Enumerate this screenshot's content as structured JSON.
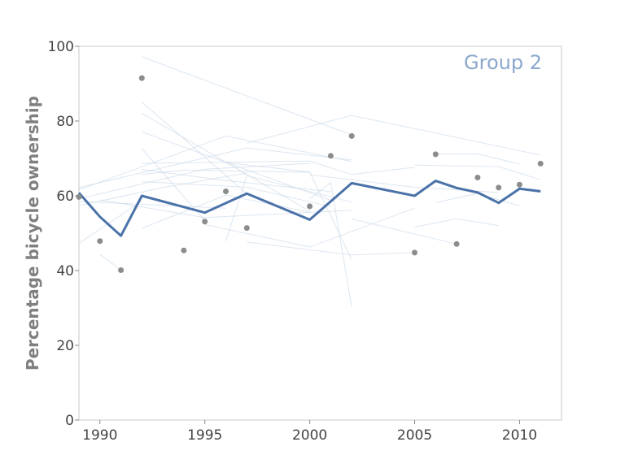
{
  "chart_data": {
    "type": "line",
    "ylabel": "Percentage bicycle ownership",
    "xlabel": "",
    "annotation": "Group 2",
    "xlim": [
      1989,
      2012
    ],
    "ylim": [
      0,
      100
    ],
    "xticks": [
      1990,
      1995,
      2000,
      2005,
      2010
    ],
    "yticks": [
      0,
      20,
      40,
      60,
      80,
      100
    ],
    "grid": false,
    "colors": {
      "mean_line": "#4a72a8",
      "points": "#8c8c8c",
      "background_lines": "#c5d5e6",
      "annotation": "#8aa8cc",
      "axis_frame": "#c8c8c8",
      "ylabel": "#808080",
      "ticks": "#444444"
    },
    "series": [
      {
        "role": "mean",
        "x": [
          1989,
          1990,
          1991,
          1992,
          1995,
          1997,
          2000,
          2002,
          2005,
          2006,
          2007,
          2008,
          2009,
          2010,
          2011
        ],
        "values": [
          60.8,
          54.4,
          49.3,
          60,
          55.5,
          60.6,
          53.6,
          63.4,
          60,
          64,
          62.1,
          60.9,
          58.1,
          61.9,
          61.2
        ]
      },
      {
        "role": "points",
        "x": [
          1989,
          1990,
          1991,
          1992,
          1994,
          1995,
          1996,
          1997,
          2000,
          2001,
          2002,
          2005,
          2006,
          2007,
          2008,
          2009,
          2010,
          2011
        ],
        "values": [
          59.7,
          47.9,
          40.1,
          91.5,
          45.4,
          53.1,
          61.2,
          51.4,
          57.2,
          70.7,
          76,
          44.8,
          71.1,
          47.1,
          64.9,
          62.2,
          63,
          68.6
        ]
      }
    ],
    "background_series": [
      {
        "x": [
          1992,
          2002
        ],
        "values": [
          97.2,
          76.3
        ]
      },
      {
        "x": [
          1992,
          1997
        ],
        "values": [
          85.1,
          60.5
        ]
      },
      {
        "x": [
          1992,
          2000
        ],
        "values": [
          82.1,
          55.9
        ]
      },
      {
        "x": [
          1992,
          2001
        ],
        "values": [
          77.1,
          58.8
        ]
      },
      {
        "x": [
          1989,
          1997,
          2002
        ],
        "values": [
          62.2,
          72.8,
          69.6
        ]
      },
      {
        "x": [
          1989,
          1996,
          2002
        ],
        "values": [
          61.6,
          76,
          69.2
        ]
      },
      {
        "x": [
          1997,
          2002,
          2011
        ],
        "values": [
          74.1,
          81.5,
          70.9
        ]
      },
      {
        "x": [
          2006,
          2008,
          2010
        ],
        "values": [
          71.1,
          71.2,
          68.5
        ]
      },
      {
        "x": [
          1992,
          1994,
          2000
        ],
        "values": [
          65.7,
          66.9,
          66.3
        ]
      },
      {
        "x": [
          1992,
          1996,
          2001
        ],
        "values": [
          67,
          64.1,
          61.1
        ]
      },
      {
        "x": [
          1992,
          2000,
          2002,
          2005
        ],
        "values": [
          68.7,
          69.3,
          65.7,
          67.6
        ]
      },
      {
        "x": [
          1989,
          1995,
          2000
        ],
        "values": [
          59.2,
          67.1,
          68.7
        ]
      },
      {
        "x": [
          1989,
          1993,
          1997
        ],
        "values": [
          57.4,
          62.2,
          66.1
        ]
      },
      {
        "x": [
          1992,
          1997,
          2001
        ],
        "values": [
          63.8,
          62.3,
          57.1
        ]
      },
      {
        "x": [
          1996,
          2000,
          2002
        ],
        "values": [
          68.9,
          66.4,
          42.9
        ]
      },
      {
        "x": [
          1992,
          1995
        ],
        "values": [
          72.6,
          53.4
        ]
      },
      {
        "x": [
          2000,
          2001,
          2002
        ],
        "values": [
          59.2,
          63.5,
          30.2
        ]
      },
      {
        "x": [
          1989,
          1992
        ],
        "values": [
          47.3,
          58.6
        ]
      },
      {
        "x": [
          1990,
          1991
        ],
        "values": [
          44.3,
          40.2
        ]
      },
      {
        "x": [
          1992,
          1996,
          2000
        ],
        "values": [
          51.3,
          60.2,
          55.6
        ]
      },
      {
        "x": [
          1997,
          2002,
          2005
        ],
        "values": [
          47.6,
          44.2,
          44.8
        ]
      },
      {
        "x": [
          1995,
          2000,
          2005
        ],
        "values": [
          52.3,
          46.3,
          56.7
        ]
      },
      {
        "x": [
          2002,
          2007
        ],
        "values": [
          53.8,
          47.1
        ]
      },
      {
        "x": [
          2006,
          2008,
          2010
        ],
        "values": [
          58.2,
          60.6,
          57.3
        ]
      },
      {
        "x": [
          2005,
          2007,
          2009
        ],
        "values": [
          51.6,
          53.9,
          52
        ]
      },
      {
        "x": [
          1989,
          1996
        ],
        "values": [
          58.5,
          56.7
        ]
      },
      {
        "x": [
          1990,
          1995,
          2002
        ],
        "values": [
          58.9,
          54.2,
          56.1
        ]
      },
      {
        "x": [
          1996,
          1997,
          2002
        ],
        "values": [
          47.9,
          65.4,
          58.3
        ]
      },
      {
        "x": [
          2005,
          2009,
          2011
        ],
        "values": [
          68.2,
          67.8,
          64.3
        ]
      },
      {
        "x": [
          2000,
          2005,
          2009
        ],
        "values": [
          65.6,
          62.3,
          60.9
        ]
      }
    ]
  }
}
